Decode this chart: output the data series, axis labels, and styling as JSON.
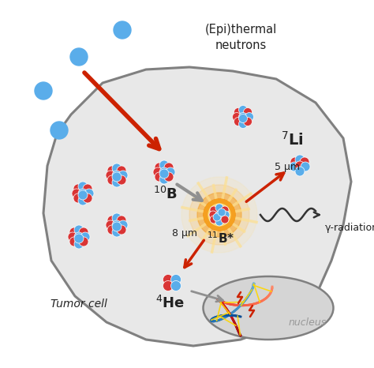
{
  "bg_color": "#ffffff",
  "cell_color": "#e8e8e8",
  "cell_edge_color": "#808080",
  "neutron_color": "#5aadea",
  "proton_color": "#d93535",
  "glow_color_inner": "#f5a020",
  "glow_color_outer": "#fde090",
  "arrow_red": "#cc2200",
  "arrow_gray": "#909090",
  "text_color": "#222222",
  "gray_text": "#999999",
  "label_5um": "5 μm",
  "label_8um": "8 μm",
  "label_tumor": "Tumor cell",
  "label_nucleus": "nucleus",
  "label_gamma": "γ-radiation"
}
